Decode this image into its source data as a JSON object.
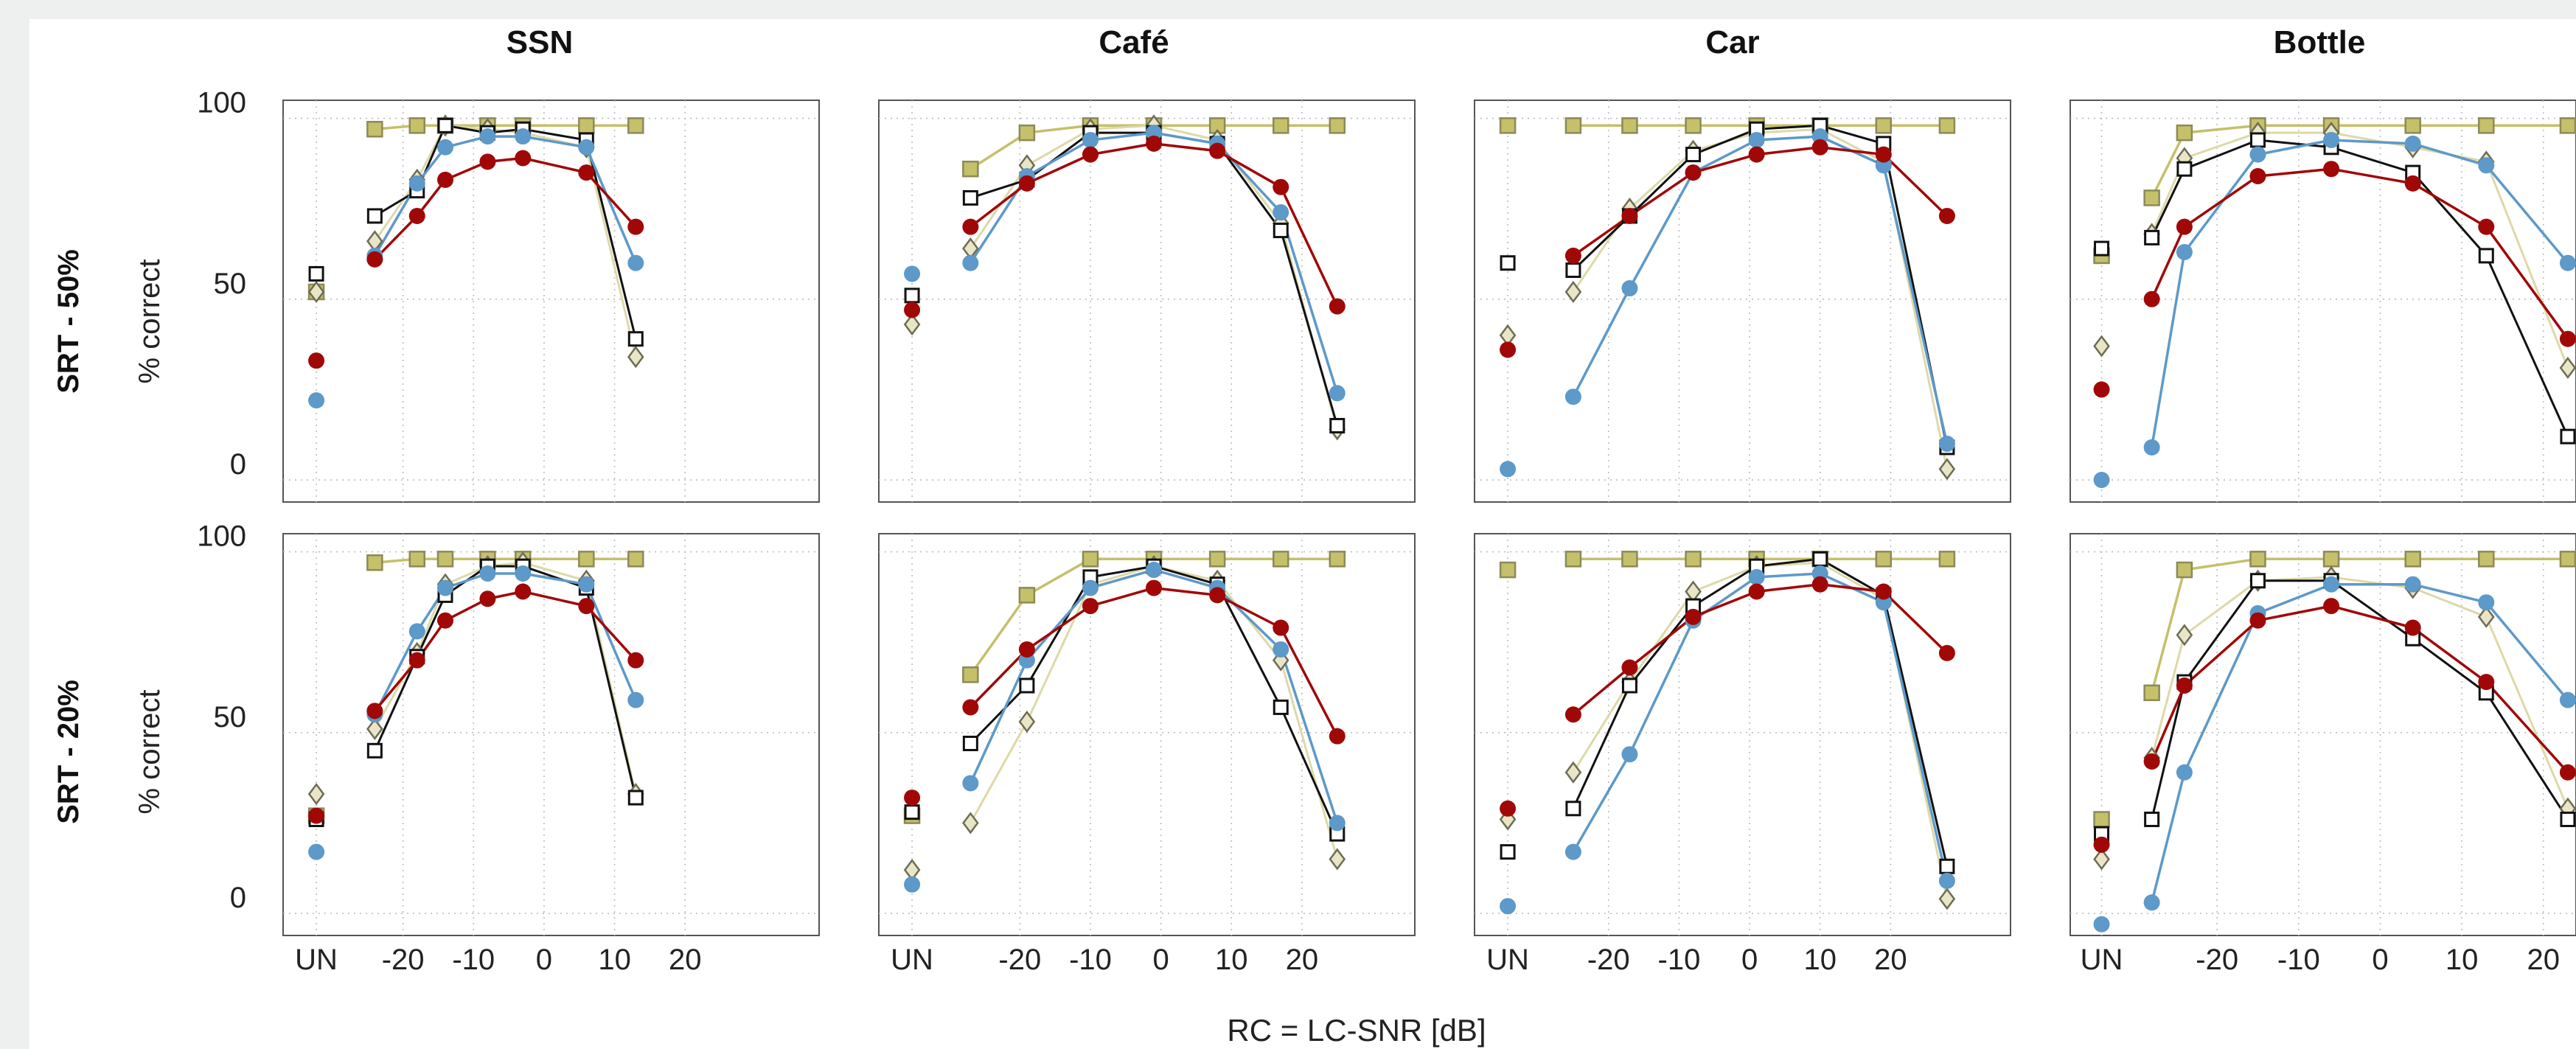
{
  "figure": {
    "column_titles": [
      "SSN",
      "Café",
      "Car",
      "Bottle"
    ],
    "row_titles": [
      "SRT - 50%",
      "SRT - 20%"
    ],
    "y_axis_label": "% correct",
    "x_axis_label": "RC = LC-SNR [dB]",
    "y_tick_labels": [
      "100",
      "50",
      "0"
    ],
    "x_tick_labels": [
      "UN",
      "-20",
      "-10",
      "0",
      "10",
      "20"
    ],
    "series_colors": {
      "black_open_square": "#111111",
      "diamond": "#a9a47e",
      "olive_square": "#c5c06a",
      "red_circle": "#a00808",
      "blue_circle": "#5d99c9"
    }
  },
  "chart_data": {
    "type": "line",
    "xlabel": "RC = LC-SNR [dB]",
    "ylabel": "% correct",
    "ylim": [
      0,
      100
    ],
    "grid": true,
    "panels": [
      {
        "row": "SRT - 50%",
        "column": "SSN",
        "xlim": [
          -37,
          39
        ],
        "xticks": [
          -20,
          -10,
          0,
          10,
          20
        ],
        "x": [
          -24,
          -18,
          -14,
          -8,
          -3,
          6,
          13
        ],
        "un": {
          "black_open_square": 57,
          "diamond": 52,
          "olive_square": 52,
          "red_circle": 33,
          "blue_circle": 22
        },
        "series": [
          {
            "marker": "black_open_square",
            "values": [
              73,
              80,
              98,
              96,
              97,
              94,
              39
            ]
          },
          {
            "marker": "diamond",
            "values": [
              66,
              83,
              98,
              97,
              96,
              92,
              34
            ]
          },
          {
            "marker": "olive_square",
            "values": [
              97,
              98,
              98,
              98,
              98,
              98,
              98
            ]
          },
          {
            "marker": "red_circle",
            "values": [
              61,
              73,
              83,
              88,
              89,
              85,
              70
            ]
          },
          {
            "marker": "blue_circle",
            "values": [
              62,
              82,
              92,
              95,
              95,
              92,
              60
            ]
          }
        ]
      },
      {
        "row": "SRT - 50%",
        "column": "Café",
        "xlim": [
          -40,
          36
        ],
        "xticks": [
          -20,
          -10,
          0,
          10,
          20
        ],
        "x": [
          -27,
          -19,
          -10,
          -1,
          8,
          17,
          25
        ],
        "un": {
          "black_open_square": 51,
          "diamond": 43,
          "olive_square": null,
          "red_circle": 47,
          "blue_circle": 57
        },
        "series": [
          {
            "marker": "black_open_square",
            "values": [
              78,
              83,
              96,
              96,
              93,
              69,
              15
            ]
          },
          {
            "marker": "diamond",
            "values": [
              64,
              87,
              97,
              98,
              94,
              71,
              14
            ]
          },
          {
            "marker": "olive_square",
            "values": [
              86,
              96,
              98,
              98,
              98,
              98,
              98
            ]
          },
          {
            "marker": "red_circle",
            "values": [
              70,
              82,
              90,
              93,
              91,
              81,
              48
            ]
          },
          {
            "marker": "blue_circle",
            "values": [
              60,
              84,
              94,
              96,
              93,
              74,
              24
            ]
          }
        ]
      },
      {
        "row": "SRT - 50%",
        "column": "Car",
        "xlim": [
          -39,
          37
        ],
        "xticks": [
          -20,
          -10,
          0,
          10,
          20
        ],
        "x": [
          -25,
          -17,
          -8,
          1,
          10,
          19,
          28
        ],
        "un": {
          "black_open_square": 60,
          "diamond": 40,
          "olive_square": 98,
          "red_circle": 36,
          "blue_circle": 3
        },
        "series": [
          {
            "marker": "black_open_square",
            "values": [
              58,
              73,
              90,
              97,
              98,
              93,
              9
            ]
          },
          {
            "marker": "diamond",
            "values": [
              52,
              75,
              91,
              96,
              97,
              88,
              3
            ]
          },
          {
            "marker": "olive_square",
            "values": [
              98,
              98,
              98,
              98,
              98,
              98,
              98
            ]
          },
          {
            "marker": "red_circle",
            "values": [
              62,
              73,
              85,
              90,
              92,
              90,
              73
            ]
          },
          {
            "marker": "blue_circle",
            "values": [
              23,
              53,
              85,
              94,
              95,
              87,
              10
            ]
          }
        ]
      },
      {
        "row": "SRT - 50%",
        "column": "Bottle",
        "xlim": [
          -38,
          24
        ],
        "xticks": [
          -20,
          -10,
          0,
          10,
          20
        ],
        "x": [
          -28,
          -24,
          -15,
          -6,
          4,
          13,
          23
        ],
        "un": {
          "black_open_square": 64,
          "diamond": 37,
          "olive_square": 62,
          "red_circle": 25,
          "blue_circle": 0
        },
        "series": [
          {
            "marker": "black_open_square",
            "values": [
              67,
              86,
              94,
              92,
              85,
              62,
              12
            ]
          },
          {
            "marker": "diamond",
            "values": [
              68,
              89,
              96,
              96,
              92,
              88,
              31
            ]
          },
          {
            "marker": "olive_square",
            "values": [
              78,
              96,
              98,
              98,
              98,
              98,
              98
            ]
          },
          {
            "marker": "red_circle",
            "values": [
              50,
              70,
              84,
              86,
              82,
              70,
              39
            ]
          },
          {
            "marker": "blue_circle",
            "values": [
              9,
              63,
              90,
              94,
              93,
              87,
              60
            ]
          }
        ]
      },
      {
        "row": "SRT - 20%",
        "column": "SSN",
        "xlim": [
          -37,
          39
        ],
        "xticks": [
          -20,
          -10,
          0,
          10,
          20
        ],
        "x": [
          -24,
          -18,
          -14,
          -8,
          -3,
          6,
          13
        ],
        "un": {
          "black_open_square": 26,
          "diamond": 33,
          "olive_square": 27,
          "red_circle": 27,
          "blue_circle": 17
        },
        "series": [
          {
            "marker": "black_open_square",
            "values": [
              45,
              71,
              88,
              96,
              96,
              90,
              32
            ]
          },
          {
            "marker": "diamond",
            "values": [
              51,
              72,
              91,
              96,
              97,
              92,
              33
            ]
          },
          {
            "marker": "olive_square",
            "values": [
              97,
              98,
              98,
              98,
              98,
              98,
              98
            ]
          },
          {
            "marker": "red_circle",
            "values": [
              56,
              70,
              81,
              87,
              89,
              85,
              70
            ]
          },
          {
            "marker": "blue_circle",
            "values": [
              55,
              78,
              90,
              94,
              94,
              91,
              59
            ]
          }
        ]
      },
      {
        "row": "SRT - 20%",
        "column": "Café",
        "xlim": [
          -40,
          36
        ],
        "xticks": [
          -20,
          -10,
          0,
          10,
          20
        ],
        "x": [
          -27,
          -19,
          -10,
          -1,
          8,
          17,
          25
        ],
        "un": {
          "black_open_square": 28,
          "diamond": 12,
          "olive_square": 27,
          "red_circle": 32,
          "blue_circle": 8
        },
        "series": [
          {
            "marker": "black_open_square",
            "values": [
              47,
              63,
              93,
              96,
              91,
              57,
              22
            ]
          },
          {
            "marker": "diamond",
            "values": [
              25,
              53,
              91,
              96,
              92,
              70,
              15
            ]
          },
          {
            "marker": "olive_square",
            "values": [
              66,
              88,
              98,
              98,
              98,
              98,
              98
            ]
          },
          {
            "marker": "red_circle",
            "values": [
              57,
              73,
              85,
              90,
              88,
              79,
              49
            ]
          },
          {
            "marker": "blue_circle",
            "values": [
              36,
              70,
              90,
              95,
              90,
              73,
              25
            ]
          }
        ]
      },
      {
        "row": "SRT - 20%",
        "column": "Car",
        "xlim": [
          -39,
          37
        ],
        "xticks": [
          -20,
          -10,
          0,
          10,
          20
        ],
        "x": [
          -25,
          -17,
          -8,
          1,
          10,
          19,
          28
        ],
        "un": {
          "black_open_square": 17,
          "diamond": 26,
          "olive_square": 95,
          "red_circle": 29,
          "blue_circle": 2
        },
        "series": [
          {
            "marker": "black_open_square",
            "values": [
              29,
              63,
              85,
              96,
              98,
              88,
              13
            ]
          },
          {
            "marker": "diamond",
            "values": [
              39,
              64,
              89,
              96,
              97,
              87,
              4
            ]
          },
          {
            "marker": "olive_square",
            "values": [
              98,
              98,
              98,
              98,
              98,
              98,
              98
            ]
          },
          {
            "marker": "red_circle",
            "values": [
              55,
              68,
              82,
              89,
              91,
              89,
              72
            ]
          },
          {
            "marker": "blue_circle",
            "values": [
              17,
              44,
              81,
              93,
              94,
              86,
              9
            ]
          }
        ]
      },
      {
        "row": "SRT - 20%",
        "column": "Bottle",
        "xlim": [
          -38,
          24
        ],
        "xticks": [
          -20,
          -10,
          0,
          10,
          20
        ],
        "x": [
          -28,
          -24,
          -15,
          -6,
          4,
          13,
          23
        ],
        "un": {
          "black_open_square": 22,
          "diamond": 15,
          "olive_square": 26,
          "red_circle": 19,
          "blue_circle": -3
        },
        "series": [
          {
            "marker": "black_open_square",
            "values": [
              26,
              64,
              92,
              92,
              76,
              61,
              26
            ]
          },
          {
            "marker": "diamond",
            "values": [
              43,
              77,
              92,
              93,
              90,
              82,
              29
            ]
          },
          {
            "marker": "olive_square",
            "values": [
              61,
              95,
              98,
              98,
              98,
              98,
              98
            ]
          },
          {
            "marker": "red_circle",
            "values": [
              42,
              63,
              81,
              85,
              79,
              64,
              39
            ]
          },
          {
            "marker": "blue_circle",
            "values": [
              3,
              39,
              83,
              91,
              91,
              86,
              59
            ]
          }
        ]
      }
    ]
  }
}
